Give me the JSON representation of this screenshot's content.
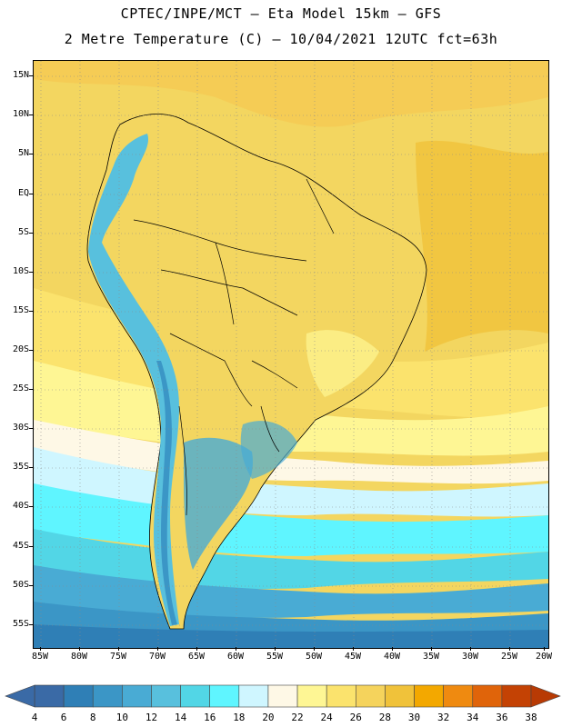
{
  "header": {
    "line1": "CPTEC/INPE/MCT –  Eta Model 15km – GFS",
    "line2": "2 Metre Temperature (C) – 10/04/2021 12UTC fct=63h"
  },
  "map": {
    "lat_labels": [
      "15N",
      "10N",
      "5N",
      "EQ",
      "5S",
      "10S",
      "15S",
      "20S",
      "25S",
      "30S",
      "35S",
      "40S",
      "45S",
      "50S",
      "55S"
    ],
    "lon_labels": [
      "85W",
      "80W",
      "75W",
      "70W",
      "65W",
      "60W",
      "55W",
      "50W",
      "45W",
      "40W",
      "35W",
      "30W",
      "25W",
      "20W"
    ]
  },
  "legend": {
    "levels": [
      "4",
      "6",
      "8",
      "10",
      "12",
      "14",
      "16",
      "18",
      "20",
      "22",
      "24",
      "26",
      "28",
      "30",
      "32",
      "34",
      "36",
      "38"
    ],
    "colors": [
      "#3a6aa6",
      "#2f7fb6",
      "#3b96c6",
      "#49abd4",
      "#58c0dd",
      "#52d6e6",
      "#5ff5ff",
      "#cff6ff",
      "#fef8e6",
      "#fef694",
      "#fbe36d",
      "#f5d35c",
      "#f0c23a",
      "#f3a800",
      "#ef8a10",
      "#e0640a",
      "#c44204"
    ],
    "low_color": "#3a6aa6",
    "high_color": "#b83a04"
  }
}
